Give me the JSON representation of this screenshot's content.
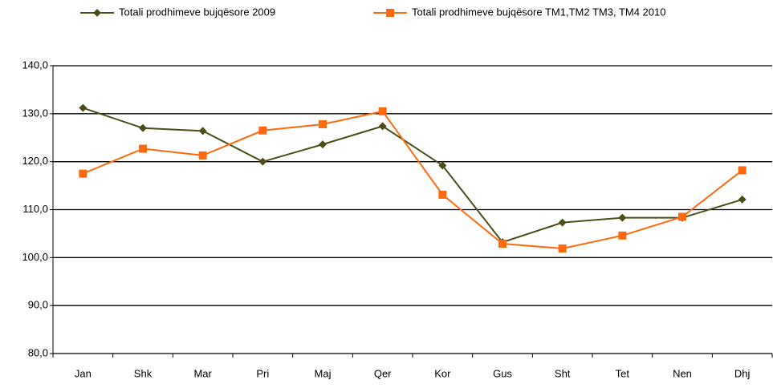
{
  "chart_data": {
    "type": "line",
    "categories": [
      "Jan",
      "Shk",
      "Mar",
      "Pri",
      "Maj",
      "Qer",
      "Kor",
      "Gus",
      "Sht",
      "Tet",
      "Nen",
      "Dhj"
    ],
    "series": [
      {
        "name": "Totali prodhimeve bujqësore 2009",
        "color": "#4d4d1a",
        "marker": "diamond",
        "values": [
          131.2,
          127.0,
          126.4,
          120.0,
          123.6,
          127.4,
          119.2,
          103.2,
          107.3,
          108.3,
          108.3,
          112.1
        ]
      },
      {
        "name": "Totali prodhimeve bujqësore TM1,TM2 TM3, TM4  2010",
        "color": "#ff6a10",
        "marker": "square",
        "values": [
          117.5,
          122.7,
          121.3,
          126.5,
          127.8,
          130.5,
          113.1,
          102.9,
          101.9,
          104.6,
          108.5,
          118.2
        ]
      }
    ],
    "ylim": [
      80,
      140
    ],
    "yticks": [
      {
        "value": 80,
        "label": "80,0"
      },
      {
        "value": 90,
        "label": "90,0"
      },
      {
        "value": 100,
        "label": "100,0"
      },
      {
        "value": 110,
        "label": "110,0"
      },
      {
        "value": 120,
        "label": "120,0"
      },
      {
        "value": 130,
        "label": "130,0"
      },
      {
        "value": 140,
        "label": "140,0"
      }
    ],
    "grid": true,
    "legend": "top"
  }
}
